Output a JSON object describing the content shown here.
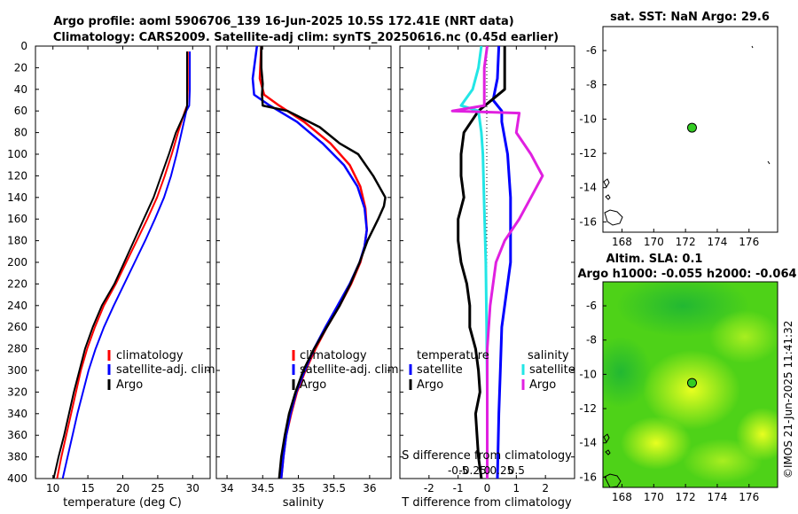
{
  "titles": {
    "line1": "Argo profile: aoml 5906706_139 16-Jun-2025 10.5S 172.41E (NRT data)",
    "line2": "Climatology: CARS2009. Satellite-adj clim: synTS_20250616.nc (0.45d earlier)",
    "sst": "sat. SST: NaN Argo: 29.6",
    "altim1": "Altim. SLA: 0.1",
    "altim2": "Argo h1000: -0.055 h2000: -0.064"
  },
  "side_label": "©IMOS 21-Jun-2025 11:41:32",
  "colors": {
    "climatology": "#ff0000",
    "satellite": "#0000ff",
    "argo": "#000000",
    "sal_satellite": "#22e6e6",
    "sal_argo": "#e020e0",
    "map_green": "#33cc22"
  },
  "chart_data": [
    {
      "type": "line",
      "id": "temperature",
      "xlabel": "temperature (deg C)",
      "ylabel": "",
      "xlim": [
        7.5,
        32.5
      ],
      "ylim": [
        400,
        0
      ],
      "xticks": [
        10,
        15,
        20,
        25,
        30
      ],
      "yticks": [
        0,
        20,
        40,
        60,
        80,
        100,
        120,
        140,
        160,
        180,
        200,
        220,
        240,
        260,
        280,
        300,
        320,
        340,
        360,
        380,
        400
      ],
      "legend": [
        "climatology",
        "satellite-adj. clim",
        "Argo"
      ],
      "series": [
        {
          "name": "climatology",
          "color": "red",
          "depth": [
            5,
            40,
            55,
            60,
            80,
            100,
            120,
            140,
            160,
            180,
            200,
            220,
            240,
            260,
            280,
            300,
            320,
            340,
            360,
            380,
            400
          ],
          "values": [
            29.3,
            29.3,
            29.2,
            28.9,
            27.9,
            27.0,
            26.0,
            24.9,
            23.5,
            22.0,
            20.5,
            19.0,
            17.3,
            16.0,
            14.9,
            14.0,
            13.3,
            12.6,
            11.9,
            11.2,
            10.6
          ]
        },
        {
          "name": "satellite-adj. clim",
          "color": "blue",
          "depth": [
            5,
            40,
            55,
            60,
            80,
            100,
            120,
            140,
            160,
            180,
            200,
            220,
            240,
            260,
            280,
            300,
            320,
            340,
            360,
            380,
            400
          ],
          "values": [
            29.6,
            29.6,
            29.5,
            29.1,
            28.4,
            27.7,
            26.9,
            25.9,
            24.6,
            23.2,
            21.7,
            20.2,
            18.7,
            17.3,
            16.1,
            15.1,
            14.3,
            13.5,
            12.8,
            12.1,
            11.4
          ]
        },
        {
          "name": "Argo",
          "color": "black",
          "depth": [
            5,
            40,
            55,
            60,
            80,
            100,
            120,
            140,
            160,
            180,
            200,
            220,
            240,
            260,
            280,
            300,
            320,
            340,
            360,
            380,
            400
          ],
          "values": [
            29.2,
            29.2,
            29.2,
            29.0,
            27.6,
            26.6,
            25.5,
            24.4,
            23.0,
            21.6,
            20.2,
            18.8,
            17.0,
            15.7,
            14.6,
            13.8,
            13.0,
            12.3,
            11.6,
            10.8,
            10.1
          ]
        }
      ]
    },
    {
      "type": "line",
      "id": "salinity",
      "xlabel": "salinity",
      "ylabel": "",
      "xlim": [
        33.85,
        36.3
      ],
      "ylim": [
        400,
        0
      ],
      "xticks": [
        34,
        34.5,
        35,
        35.5,
        36
      ],
      "legend": [
        "climatology",
        "satellite-adj. clim",
        "Argo"
      ],
      "series": [
        {
          "name": "climatology",
          "color": "red",
          "depth": [
            0,
            30,
            45,
            55,
            70,
            90,
            110,
            130,
            150,
            170,
            185,
            200,
            220,
            240,
            260,
            280,
            300,
            320,
            340,
            360,
            380,
            400
          ],
          "values": [
            34.48,
            34.46,
            34.52,
            34.73,
            35.08,
            35.45,
            35.72,
            35.87,
            35.94,
            35.96,
            35.93,
            35.87,
            35.74,
            35.58,
            35.4,
            35.24,
            35.1,
            34.98,
            34.9,
            34.83,
            34.79,
            34.76
          ]
        },
        {
          "name": "satellite-adj. clim",
          "color": "blue",
          "depth": [
            0,
            30,
            45,
            55,
            70,
            90,
            110,
            130,
            150,
            170,
            185,
            200,
            220,
            240,
            260,
            280,
            300,
            320,
            340,
            360,
            380,
            400
          ],
          "values": [
            34.42,
            34.36,
            34.38,
            34.6,
            34.98,
            35.34,
            35.64,
            35.83,
            35.93,
            35.96,
            35.93,
            35.86,
            35.72,
            35.55,
            35.38,
            35.22,
            35.09,
            34.97,
            34.89,
            34.83,
            34.79,
            34.76
          ]
        },
        {
          "name": "Argo",
          "color": "black",
          "depth": [
            0,
            20,
            35,
            45,
            55,
            60,
            75,
            90,
            100,
            120,
            140,
            148,
            160,
            180,
            200,
            220,
            240,
            260,
            280,
            300,
            320,
            340,
            360,
            380,
            400
          ],
          "values": [
            34.48,
            34.48,
            34.5,
            34.49,
            34.5,
            34.85,
            35.3,
            35.58,
            35.84,
            36.05,
            36.22,
            36.2,
            36.12,
            35.97,
            35.86,
            35.73,
            35.58,
            35.4,
            35.22,
            35.07,
            34.96,
            34.87,
            34.81,
            34.76,
            34.73
          ]
        }
      ]
    },
    {
      "type": "line",
      "id": "difference",
      "xlabel": "T difference from climatology",
      "top_label": "S difference from climatology",
      "xlim": [
        -3,
        3
      ],
      "ylim": [
        400,
        0
      ],
      "xticks": [
        -2,
        -1,
        0,
        1,
        2
      ],
      "top_ticks": [
        "-0.5",
        "-0.25",
        "0",
        "0.25",
        "0.5"
      ],
      "legend_headers": [
        "temperature",
        "salinity"
      ],
      "legend": [
        "satellite",
        "Argo",
        "satellite",
        "Argo"
      ],
      "series": [
        {
          "name": "T satellite",
          "color": "blue",
          "depth": [
            0,
            30,
            50,
            60,
            70,
            100,
            140,
            200,
            260,
            300,
            340,
            400
          ],
          "values": [
            0.4,
            0.35,
            0.2,
            0.5,
            0.5,
            0.7,
            0.8,
            0.8,
            0.5,
            0.45,
            0.4,
            0.35
          ]
        },
        {
          "name": "T Argo",
          "color": "black",
          "depth": [
            0,
            20,
            40,
            60,
            80,
            100,
            120,
            140,
            160,
            180,
            200,
            220,
            240,
            260,
            280,
            300,
            320,
            340,
            360,
            380,
            400
          ],
          "values": [
            0.6,
            0.6,
            0.6,
            -0.3,
            -0.8,
            -0.9,
            -0.9,
            -0.8,
            -1.0,
            -1.0,
            -0.9,
            -0.7,
            -0.6,
            -0.6,
            -0.4,
            -0.3,
            -0.25,
            -0.4,
            -0.35,
            -0.3,
            -0.2
          ]
        },
        {
          "name": "S satellite",
          "color": "cyan",
          "depth": [
            0,
            20,
            40,
            55,
            60,
            80,
            100,
            150,
            200,
            260,
            320,
            400
          ],
          "values": [
            -0.2,
            -0.3,
            -0.5,
            -0.9,
            -0.3,
            -0.2,
            -0.15,
            -0.1,
            -0.05,
            -0.02,
            0.0,
            0.0
          ]
        },
        {
          "name": "S Argo",
          "color": "magenta",
          "depth": [
            0,
            20,
            40,
            55,
            60,
            62,
            80,
            100,
            110,
            120,
            140,
            160,
            180,
            200,
            240,
            280,
            320,
            360,
            400
          ],
          "values": [
            0,
            -0.1,
            -0.1,
            -0.1,
            -1.2,
            1.1,
            1.0,
            1.5,
            1.7,
            1.9,
            1.5,
            1.1,
            0.6,
            0.3,
            0.1,
            0.0,
            0.0,
            0.0,
            0.0
          ]
        }
      ]
    },
    {
      "type": "map",
      "id": "sst_map",
      "title": "sat. SST: NaN Argo: 29.6",
      "xlim": [
        166.8,
        177.8
      ],
      "ylim": [
        -16.6,
        -4.6
      ],
      "xticks": [
        168,
        170,
        172,
        174,
        176
      ],
      "yticks": [
        -6,
        -8,
        -10,
        -12,
        -14,
        -16
      ],
      "marker": {
        "lon": 172.41,
        "lat": -10.5
      }
    },
    {
      "type": "heatmap",
      "id": "altim_map",
      "title": "Altim. SLA: 0.1",
      "subtitle": "Argo h1000: -0.055 h2000: -0.064",
      "xlim": [
        166.8,
        177.8
      ],
      "ylim": [
        -16.6,
        -4.6
      ],
      "xticks": [
        168,
        170,
        172,
        174,
        176
      ],
      "yticks": [
        -6,
        -8,
        -10,
        -12,
        -14,
        -16
      ],
      "marker": {
        "lon": 172.41,
        "lat": -10.5
      }
    }
  ]
}
